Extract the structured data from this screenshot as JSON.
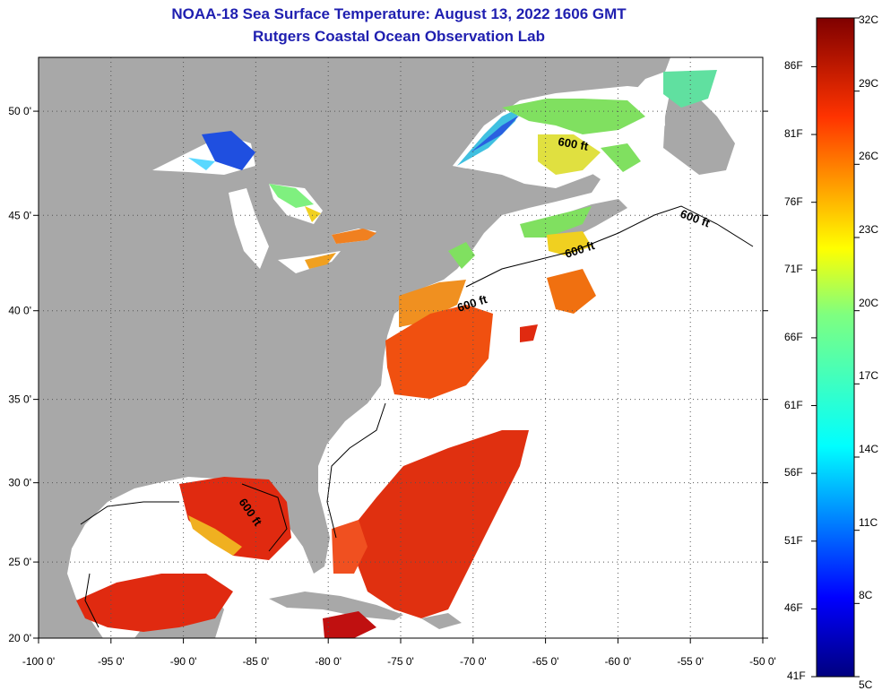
{
  "title": {
    "line1": "NOAA-18 Sea Surface Temperature:  August 13, 2022 1606 GMT",
    "line2": "Rutgers Coastal Ocean Observation Lab"
  },
  "map": {
    "lon_labels": [
      "-100 0'",
      "-95 0'",
      "-90 0'",
      "-85 0'",
      "-80 0'",
      "-75 0'",
      "-70 0'",
      "-65 0'",
      "-60 0'",
      "-55 0'",
      "-50 0'"
    ],
    "lat_labels": [
      "50 0'",
      "45 0'",
      "40 0'",
      "35 0'",
      "30 0'",
      "25 0'",
      "20 0'"
    ],
    "contour_labels": [
      "600 ft",
      "600 ft",
      "600 ft",
      "600 ft",
      "600 ft"
    ],
    "colors": {
      "land": "#a8a8a8",
      "cloud": "#ffffff",
      "grid": "#555555"
    }
  },
  "colorbar": {
    "celsius": [
      "32C",
      "29C",
      "26C",
      "23C",
      "20C",
      "17C",
      "14C",
      "11C",
      "8C",
      "5C"
    ],
    "fahrenheit": [
      "86F",
      "81F",
      "76F",
      "71F",
      "66F",
      "61F",
      "56F",
      "51F",
      "46F",
      "41F"
    ]
  }
}
